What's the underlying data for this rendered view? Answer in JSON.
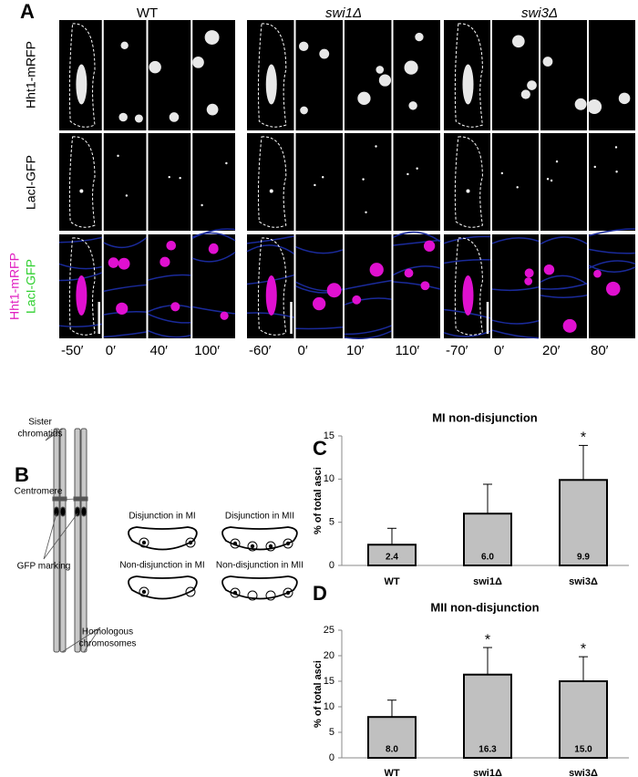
{
  "panel_labels": [
    "A",
    "B",
    "C",
    "D"
  ],
  "microscopy": {
    "strains": [
      {
        "name": "WT",
        "times": [
          "-50′",
          "0′",
          "40′",
          "100′"
        ]
      },
      {
        "name": "swi1Δ",
        "times": [
          "-60′",
          "0′",
          "10′",
          "110′"
        ]
      },
      {
        "name": "swi3Δ",
        "times": [
          "-70′",
          "0′",
          "20′",
          "80′"
        ]
      }
    ],
    "channels": [
      "Hht1-mRFP",
      "LacI-GFP"
    ],
    "merge": [
      "Hht1-mRFP",
      "LacI-GFP"
    ]
  },
  "diagram": {
    "sister_chromatids": [
      "Sister",
      "chromatids"
    ],
    "centromere": "Centromere",
    "gfp_marking": "GFP marking",
    "homologous_chromosomes": [
      "Homologous",
      "chromosomes"
    ],
    "asci": [
      "Disjunction in  MI",
      "Disjunction in  MII",
      "Non-disjunction in  MI",
      "Non-disjunction in  MII"
    ]
  },
  "chart_data": [
    {
      "type": "bar",
      "title": "MI non-disjunction",
      "y_label": "% of total asci",
      "categories": [
        "WT",
        "swi1Δ",
        "swi3Δ"
      ],
      "values": [
        2.4,
        6.0,
        9.9
      ],
      "value_labels": [
        "2.4",
        "6.0",
        "9.9"
      ],
      "errors": [
        1.9,
        3.4,
        4.0
      ],
      "significance": [
        null,
        null,
        "*"
      ],
      "color": "#c0c0c0",
      "ylim": [
        0,
        15
      ],
      "yticks": [
        0,
        5,
        10,
        15
      ]
    },
    {
      "type": "bar",
      "title": "MII non-disjunction",
      "y_label": "% of total asci",
      "categories": [
        "WT",
        "swi1Δ",
        "swi3Δ"
      ],
      "values": [
        8.0,
        16.3,
        15.0
      ],
      "value_labels": [
        "8.0",
        "16.3",
        "15.0"
      ],
      "errors": [
        3.3,
        5.3,
        4.8
      ],
      "significance": [
        null,
        "*",
        "*"
      ],
      "color": "#c0c0c0",
      "ylim": [
        0,
        25
      ],
      "yticks": [
        0,
        5,
        10,
        15,
        20,
        25
      ]
    }
  ]
}
